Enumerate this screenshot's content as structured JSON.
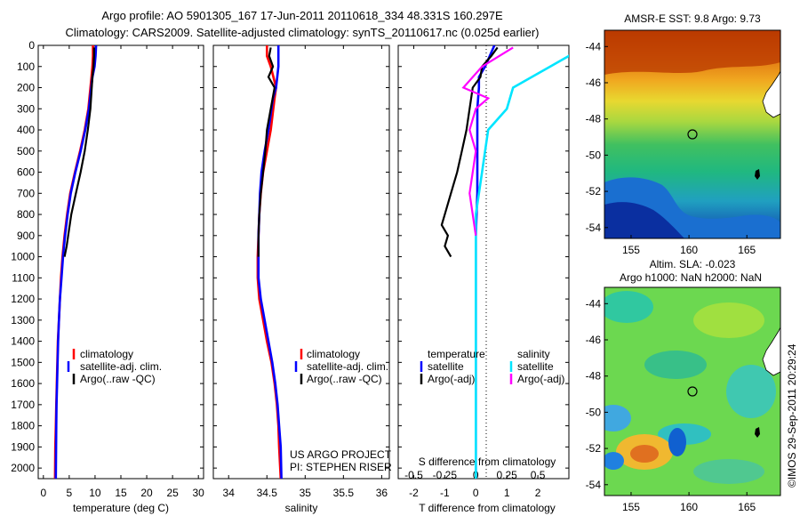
{
  "header": {
    "line1": "Argo profile: AO 5901305_167 17-Jun-2011 20110618_334 48.331S 160.297E",
    "line2": "Climatology: CARS2009. Satellite-adjusted climatology: synTS_20110617.nc (0.025d earlier)"
  },
  "footer": {
    "project": "US ARGO PROJECT",
    "pi": "PI: STEPHEN RISER",
    "stamp": "©IMOS 29-Sep-2011 20:29:24"
  },
  "colors": {
    "climatology": "#ff0000",
    "satellite": "#0000ff",
    "argo": "#000000",
    "sat_sal": "#00e5ff",
    "argo_sal": "#ff00ff"
  },
  "chart_data": [
    {
      "type": "line",
      "panel": "temperature",
      "xlabel": "temperature (deg C)",
      "ylabel": "",
      "xlim": [
        -1,
        31
      ],
      "ylim": [
        2050,
        0
      ],
      "xticks": [
        "0",
        "5",
        "10",
        "15",
        "20",
        "25",
        "30"
      ],
      "yticks": [
        "0",
        "100",
        "200",
        "300",
        "400",
        "500",
        "600",
        "700",
        "800",
        "900",
        "1000",
        "1100",
        "1200",
        "1300",
        "1400",
        "1500",
        "1600",
        "1700",
        "1800",
        "1900",
        "2000"
      ],
      "legend": [
        "climatology",
        "satellite-adj. clim.",
        "Argo(..raw -QC)"
      ],
      "legend_position": "lower-center",
      "series": [
        {
          "name": "climatology",
          "x": [
            9.6,
            9.6,
            9.5,
            9.3,
            8.7,
            8.0,
            7.1,
            6.1,
            5.2,
            4.6,
            4.1,
            3.7,
            3.4,
            3.2,
            3.0,
            2.8,
            2.7,
            2.6,
            2.5,
            2.4,
            2.3,
            2.25
          ],
          "y": [
            0,
            50,
            100,
            150,
            300,
            400,
            500,
            600,
            700,
            800,
            900,
            1000,
            1100,
            1200,
            1300,
            1400,
            1500,
            1600,
            1700,
            1800,
            1900,
            2050
          ]
        },
        {
          "name": "satellite-adj. clim.",
          "x": [
            10.2,
            10.1,
            9.9,
            9.5,
            8.8,
            8.1,
            7.2,
            6.2,
            5.3,
            4.7,
            4.2,
            3.8,
            3.5,
            3.2,
            3.0,
            2.85,
            2.75,
            2.65,
            2.55,
            2.5,
            2.45,
            2.4
          ],
          "y": [
            0,
            50,
            100,
            150,
            300,
            400,
            500,
            600,
            700,
            800,
            900,
            1000,
            1100,
            1200,
            1300,
            1400,
            1500,
            1600,
            1700,
            1800,
            1900,
            2050
          ]
        },
        {
          "name": "Argo(..raw -QC)",
          "x": [
            9.8,
            9.8,
            9.7,
            9.5,
            9.1,
            8.6,
            8.0,
            7.2,
            6.3,
            5.4,
            4.8,
            4.5,
            4.1
          ],
          "y": [
            10,
            50,
            100,
            150,
            300,
            400,
            500,
            600,
            700,
            800,
            900,
            950,
            1000
          ]
        }
      ]
    },
    {
      "type": "line",
      "panel": "salinity",
      "xlabel": "salinity",
      "ylabel": "",
      "xlim": [
        33.8,
        36.1
      ],
      "ylim": [
        2050,
        0
      ],
      "xticks": [
        "34",
        "34.5",
        "35",
        "35.5",
        "36"
      ],
      "legend": [
        "climatology",
        "satellite-adj. clim.",
        "Argo(..raw -QC)"
      ],
      "legend_position": "lower-center",
      "series": [
        {
          "name": "climatology",
          "x": [
            34.5,
            34.5,
            34.55,
            34.62,
            34.6,
            34.55,
            34.5,
            34.45,
            34.42,
            34.4,
            34.39,
            34.38,
            34.38,
            34.4,
            34.45,
            34.5,
            34.56,
            34.6,
            34.63,
            34.65,
            34.66,
            34.68
          ],
          "y": [
            0,
            50,
            100,
            200,
            250,
            400,
            500,
            600,
            700,
            800,
            900,
            1000,
            1100,
            1200,
            1300,
            1400,
            1500,
            1600,
            1700,
            1800,
            1900,
            2050
          ]
        },
        {
          "name": "satellite-adj. clim.",
          "x": [
            34.65,
            34.65,
            34.65,
            34.62,
            34.58,
            34.52,
            34.47,
            34.43,
            34.41,
            34.4,
            34.39,
            34.39,
            34.39,
            34.42,
            34.47,
            34.52,
            34.57,
            34.61,
            34.64,
            34.66,
            34.68,
            34.69
          ],
          "y": [
            0,
            50,
            100,
            200,
            250,
            400,
            500,
            600,
            700,
            800,
            900,
            1000,
            1100,
            1200,
            1300,
            1400,
            1500,
            1600,
            1700,
            1800,
            1900,
            2050
          ]
        },
        {
          "name": "Argo(..raw -QC)",
          "x": [
            34.55,
            34.53,
            34.58,
            34.52,
            34.6,
            34.55,
            34.5,
            34.48,
            34.45,
            34.42,
            34.4,
            34.39,
            34.39
          ],
          "y": [
            10,
            50,
            100,
            150,
            200,
            300,
            400,
            500,
            600,
            700,
            800,
            900,
            1000
          ]
        }
      ]
    },
    {
      "type": "line",
      "panel": "difference",
      "xlabel": "T difference from climatology",
      "x2label": "S difference from climatology",
      "xlim": [
        -2.5,
        3
      ],
      "ylim": [
        2050,
        0
      ],
      "xticks": [
        "-2",
        "-1",
        "0",
        "1",
        "2"
      ],
      "x2ticks": [
        "-0.5",
        "-0.25",
        "0",
        "0.25",
        "0.5"
      ],
      "legend_headers": [
        "temperature",
        "salinity"
      ],
      "legend": [
        "satellite",
        "Argo(-adj)",
        "satellite",
        "Argo(-adj)"
      ],
      "series": [
        {
          "name": "satellite",
          "group": "temperature",
          "x": [
            0.6,
            0.45,
            0.3,
            0.1,
            0.1,
            0.05,
            0.05,
            0.05,
            0.0,
            0.0,
            0.0,
            0.0
          ],
          "y": [
            0,
            50,
            100,
            150,
            200,
            300,
            500,
            700,
            900,
            1100,
            1500,
            2050
          ]
        },
        {
          "name": "Argo(-adj)",
          "group": "temperature",
          "x": [
            0.7,
            0.5,
            0.2,
            0.15,
            -0.1,
            -0.2,
            -0.3,
            -0.45,
            -0.6,
            -0.8,
            -1.0,
            -1.1,
            -0.9,
            -1.0,
            -0.8
          ],
          "y": [
            10,
            50,
            100,
            150,
            200,
            300,
            400,
            500,
            600,
            700,
            800,
            850,
            900,
            950,
            1000
          ]
        },
        {
          "name": "satellite",
          "group": "salinity",
          "x": [
            0.9,
            0.75,
            0.6,
            0.45,
            0.3,
            0.25,
            0.1,
            0.05,
            0.0,
            0.0,
            0.0
          ],
          "y": [
            0,
            50,
            100,
            150,
            200,
            300,
            400,
            600,
            800,
            1000,
            2050
          ]
        },
        {
          "name": "Argo(-adj)",
          "group": "salinity",
          "x": [
            0.3,
            0.05,
            -0.1,
            0.1,
            0.0,
            -0.05,
            0.0,
            -0.05,
            0.0
          ],
          "y": [
            10,
            100,
            200,
            250,
            300,
            400,
            500,
            700,
            900
          ]
        }
      ]
    },
    {
      "type": "heatmap",
      "panel": "sst-map",
      "title": "AMSR-E SST: 9.8 Argo: 9.73",
      "xticks": [
        "155",
        "160",
        "165"
      ],
      "yticks": [
        "-44",
        "-46",
        "-48",
        "-50",
        "-52",
        "-54"
      ],
      "xlim": [
        152.7,
        167.9
      ],
      "ylim": [
        -54.6,
        -43.1
      ],
      "marker": {
        "lon": 160.3,
        "lat": -48.33
      }
    },
    {
      "type": "heatmap",
      "panel": "sla-map",
      "title": "Altim. SLA: -0.023",
      "subtitle": "Argo h1000: NaN h2000: NaN",
      "xticks": [
        "155",
        "160",
        "165"
      ],
      "yticks": [
        "-44",
        "-46",
        "-48",
        "-50",
        "-52",
        "-54"
      ],
      "xlim": [
        152.7,
        167.9
      ],
      "ylim": [
        -54.6,
        -43.1
      ],
      "marker": {
        "lon": 160.3,
        "lat": -48.33
      }
    }
  ]
}
